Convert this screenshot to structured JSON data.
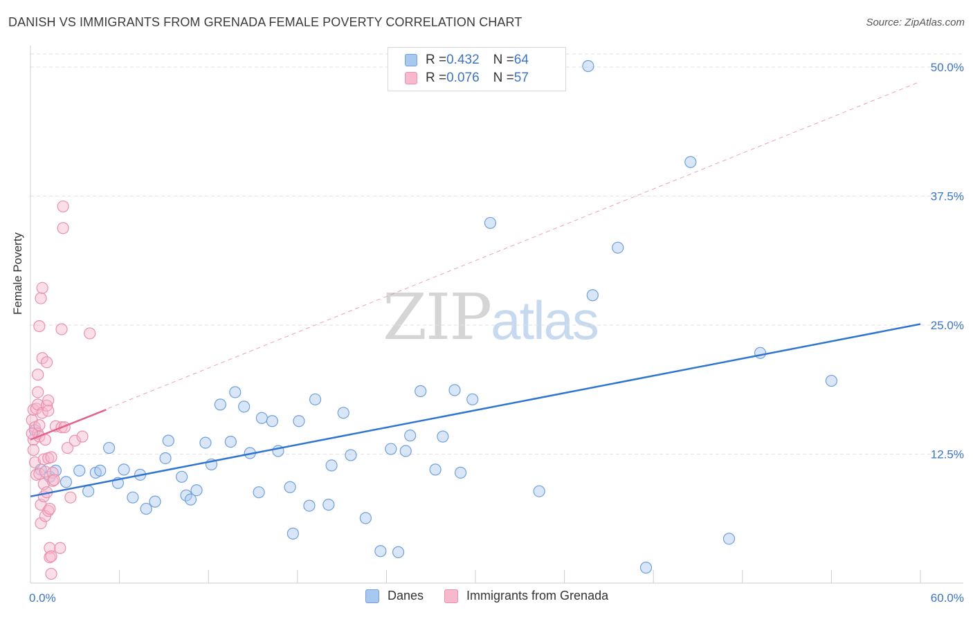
{
  "header": {
    "title": "DANISH VS IMMIGRANTS FROM GRENADA FEMALE POVERTY CORRELATION CHART",
    "source": "Source: ZipAtlas.com"
  },
  "watermark": {
    "zip": "ZIP",
    "atlas": "atlas"
  },
  "legend": {
    "danes": {
      "r_label": "R = ",
      "r_value": "0.432",
      "n_label": "N = ",
      "n_value": "64"
    },
    "grenada": {
      "r_label": "R = ",
      "r_value": "0.076",
      "n_label": "N = ",
      "n_value": "57"
    }
  },
  "bottom_legend": {
    "danes": "Danes",
    "grenada": "Immigrants from Grenada"
  },
  "colors": {
    "danes_fill": "#a9c8f0",
    "danes_stroke": "#6f9fdc",
    "danes_line": "#2f74d0",
    "grenada_fill": "#f7b9cc",
    "grenada_stroke": "#e98fac",
    "grenada_line": "#e2628a",
    "grid": "#e2e2e2",
    "axis_tick_text": "#3b73c7"
  },
  "chart_data": {
    "type": "scatter",
    "title": "DANISH VS IMMIGRANTS FROM GRENADA FEMALE POVERTY CORRELATION CHART",
    "xlabel": "",
    "ylabel": "Female Poverty",
    "xlim": [
      0,
      60
    ],
    "ylim": [
      0,
      50
    ],
    "x_tick_labels": [
      {
        "value": 0,
        "label": "0.0%"
      },
      {
        "value": 60,
        "label": "60.0%"
      }
    ],
    "y_tick_labels": [
      {
        "value": 12.5,
        "label": "12.5%"
      },
      {
        "value": 25,
        "label": "25.0%"
      },
      {
        "value": 37.5,
        "label": "37.5%"
      },
      {
        "value": 50,
        "label": "50.0%"
      }
    ],
    "grid": true,
    "legend_position": "top-center",
    "series": [
      {
        "name": "Danes",
        "R": 0.432,
        "N": 64,
        "points": [
          [
            0.3,
            14.8
          ],
          [
            0.7,
            11.0
          ],
          [
            1.3,
            10.3
          ],
          [
            1.7,
            10.9
          ],
          [
            2.4,
            9.8
          ],
          [
            3.3,
            10.9
          ],
          [
            3.9,
            8.9
          ],
          [
            4.4,
            10.7
          ],
          [
            4.7,
            10.9
          ],
          [
            5.3,
            13.1
          ],
          [
            5.9,
            9.7
          ],
          [
            6.3,
            11.0
          ],
          [
            6.9,
            8.3
          ],
          [
            7.4,
            10.5
          ],
          [
            7.8,
            7.2
          ],
          [
            8.4,
            7.9
          ],
          [
            9.1,
            12.1
          ],
          [
            9.3,
            13.8
          ],
          [
            10.2,
            10.3
          ],
          [
            10.5,
            8.5
          ],
          [
            10.8,
            8.1
          ],
          [
            11.2,
            9.0
          ],
          [
            11.8,
            13.6
          ],
          [
            12.2,
            11.5
          ],
          [
            12.8,
            17.3
          ],
          [
            13.5,
            13.7
          ],
          [
            13.8,
            18.5
          ],
          [
            14.4,
            17.1
          ],
          [
            14.8,
            12.6
          ],
          [
            15.4,
            8.8
          ],
          [
            15.6,
            16.0
          ],
          [
            16.3,
            15.7
          ],
          [
            16.7,
            12.8
          ],
          [
            17.5,
            9.3
          ],
          [
            17.7,
            4.8
          ],
          [
            18.1,
            15.7
          ],
          [
            18.8,
            7.5
          ],
          [
            19.2,
            17.8
          ],
          [
            20.1,
            7.6
          ],
          [
            20.3,
            11.4
          ],
          [
            21.1,
            16.5
          ],
          [
            21.6,
            12.4
          ],
          [
            22.6,
            6.3
          ],
          [
            23.6,
            3.1
          ],
          [
            24.3,
            13.0
          ],
          [
            24.8,
            3.0
          ],
          [
            25.3,
            12.8
          ],
          [
            25.6,
            14.3
          ],
          [
            26.3,
            18.6
          ],
          [
            27.3,
            11.0
          ],
          [
            27.8,
            14.2
          ],
          [
            28.6,
            18.7
          ],
          [
            29.0,
            10.7
          ],
          [
            29.8,
            17.8
          ],
          [
            31.0,
            34.9
          ],
          [
            34.3,
            8.9
          ],
          [
            37.6,
            50.1
          ],
          [
            37.9,
            27.9
          ],
          [
            39.6,
            32.5
          ],
          [
            41.5,
            1.5
          ],
          [
            44.5,
            40.8
          ],
          [
            47.1,
            4.3
          ],
          [
            49.2,
            22.3
          ],
          [
            54.0,
            19.6
          ]
        ],
        "trendline": {
          "x": [
            0,
            60
          ],
          "y": [
            8.4,
            25.1
          ]
        }
      },
      {
        "name": "Immigrants from Grenada",
        "R": 0.076,
        "N": 57,
        "points": [
          [
            0.1,
            15.8
          ],
          [
            0.2,
            13.9
          ],
          [
            0.2,
            12.9
          ],
          [
            0.2,
            16.8
          ],
          [
            0.3,
            15.1
          ],
          [
            0.3,
            11.7
          ],
          [
            0.4,
            16.9
          ],
          [
            0.4,
            10.5
          ],
          [
            0.5,
            20.2
          ],
          [
            0.5,
            18.5
          ],
          [
            0.5,
            17.3
          ],
          [
            0.5,
            14.5
          ],
          [
            0.6,
            24.9
          ],
          [
            0.6,
            15.3
          ],
          [
            0.6,
            14.2
          ],
          [
            0.6,
            10.6
          ],
          [
            0.7,
            7.6
          ],
          [
            0.7,
            5.8
          ],
          [
            0.7,
            27.6
          ],
          [
            0.8,
            28.6
          ],
          [
            0.8,
            21.8
          ],
          [
            0.8,
            16.5
          ],
          [
            0.9,
            12.0
          ],
          [
            0.9,
            9.6
          ],
          [
            0.9,
            8.4
          ],
          [
            1.0,
            13.9
          ],
          [
            1.0,
            10.8
          ],
          [
            1.0,
            6.5
          ],
          [
            1.1,
            21.4
          ],
          [
            1.1,
            17.2
          ],
          [
            1.1,
            8.8
          ],
          [
            1.2,
            17.7
          ],
          [
            1.2,
            16.7
          ],
          [
            1.2,
            12.1
          ],
          [
            1.2,
            7.0
          ],
          [
            1.3,
            3.4
          ],
          [
            1.3,
            2.5
          ],
          [
            1.3,
            7.2
          ],
          [
            1.4,
            12.2
          ],
          [
            1.4,
            2.6
          ],
          [
            1.4,
            0.9
          ],
          [
            1.5,
            10.7
          ],
          [
            1.5,
            9.9
          ],
          [
            1.6,
            10.0
          ],
          [
            1.7,
            15.2
          ],
          [
            2.0,
            3.4
          ],
          [
            2.1,
            15.1
          ],
          [
            2.1,
            24.6
          ],
          [
            2.2,
            34.4
          ],
          [
            2.2,
            36.5
          ],
          [
            2.3,
            15.1
          ],
          [
            2.5,
            13.1
          ],
          [
            2.7,
            8.3
          ],
          [
            3.0,
            13.8
          ],
          [
            3.5,
            14.2
          ],
          [
            4.0,
            24.2
          ],
          [
            0.1,
            14.5
          ]
        ],
        "trendline": {
          "x": [
            0,
            5.1
          ],
          "y": [
            13.9,
            16.8
          ]
        },
        "extended_trendline": {
          "x": [
            0,
            60
          ],
          "y": [
            13.9,
            48.6
          ]
        }
      }
    ]
  }
}
